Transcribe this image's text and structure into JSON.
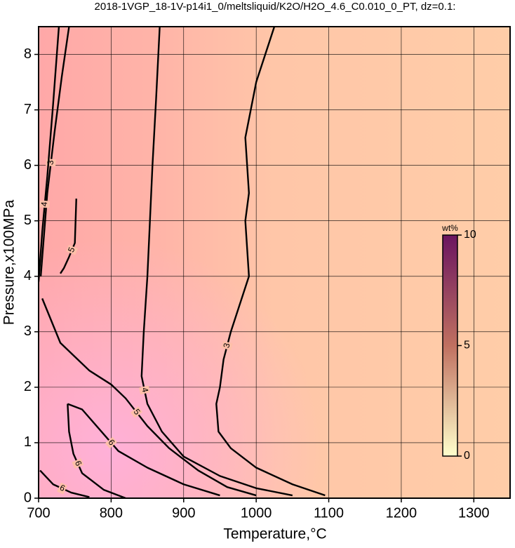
{
  "chart_data": {
    "type": "contour",
    "title": "2018-1VGP_18-1V-p14i1_0/meltsliquid/K2O/H2O_4.6_C0.010_0_PT, dz=0.1:",
    "xlabel": "Temperature,°C",
    "ylabel": "Pressure,x100MPa",
    "xlim": [
      700,
      1350
    ],
    "ylim": [
      0,
      8.5
    ],
    "xticks": [
      700,
      800,
      900,
      1000,
      1100,
      1200,
      1300
    ],
    "yticks": [
      0,
      1,
      2,
      3,
      4,
      5,
      6,
      7,
      8
    ],
    "grid": true,
    "colorbar": {
      "label": "wt%",
      "lim": [
        0,
        10
      ],
      "ticks": [
        0,
        5,
        10
      ],
      "colors": [
        "#ffffcc",
        "#c07060",
        "#6a1560"
      ]
    },
    "contours": [
      {
        "level": 3,
        "x": [
          1025,
          1000,
          985,
          990,
          985,
          990,
          965,
          955,
          950,
          945,
          948,
          965,
          1000,
          1050,
          1095
        ],
        "y": [
          8.5,
          7.5,
          6.5,
          5.5,
          5.0,
          4.0,
          3.0,
          2.5,
          2.0,
          1.7,
          1.2,
          0.9,
          0.55,
          0.25,
          0.05
        ]
      },
      {
        "level": 4,
        "x": [
          867,
          862,
          857,
          850,
          845,
          842,
          850,
          870,
          900,
          950,
          1000,
          1050
        ],
        "y": [
          8.5,
          7.2,
          6.0,
          4.0,
          3.0,
          2.2,
          1.7,
          1.2,
          0.75,
          0.4,
          0.18,
          0.05
        ]
      },
      {
        "level": 5,
        "x": [
          705,
          730,
          770,
          800,
          820,
          850,
          880,
          920,
          960,
          1000
        ],
        "y": [
          3.6,
          2.8,
          2.3,
          2.05,
          1.8,
          1.3,
          0.9,
          0.5,
          0.2,
          0.05
        ]
      },
      {
        "level": 6,
        "x": [
          740,
          760,
          790,
          810,
          850,
          900,
          950
        ],
        "y": [
          1.7,
          1.6,
          1.15,
          0.85,
          0.55,
          0.25,
          0.05
        ]
      },
      {
        "level": 6,
        "x": [
          740,
          742,
          748,
          760,
          790,
          820
        ],
        "y": [
          1.7,
          1.2,
          0.8,
          0.45,
          0.15,
          0.0
        ]
      },
      {
        "level": 5,
        "x": [
          752,
          750,
          742,
          735,
          730
        ],
        "y": [
          5.4,
          4.6,
          4.35,
          4.15,
          4.05
        ]
      },
      {
        "level": 3,
        "x": [
          703,
          712,
          722,
          732,
          742
        ],
        "y": [
          4.0,
          5.5,
          6.6,
          7.6,
          8.5
        ]
      },
      {
        "level": 4,
        "x": [
          700,
          705,
          712,
          720,
          728
        ],
        "y": [
          3.9,
          4.8,
          5.8,
          7.1,
          8.5
        ]
      },
      {
        "level": 6,
        "x": [
          702,
          720,
          745,
          770
        ],
        "y": [
          0.5,
          0.25,
          0.1,
          0.02
        ]
      }
    ]
  }
}
